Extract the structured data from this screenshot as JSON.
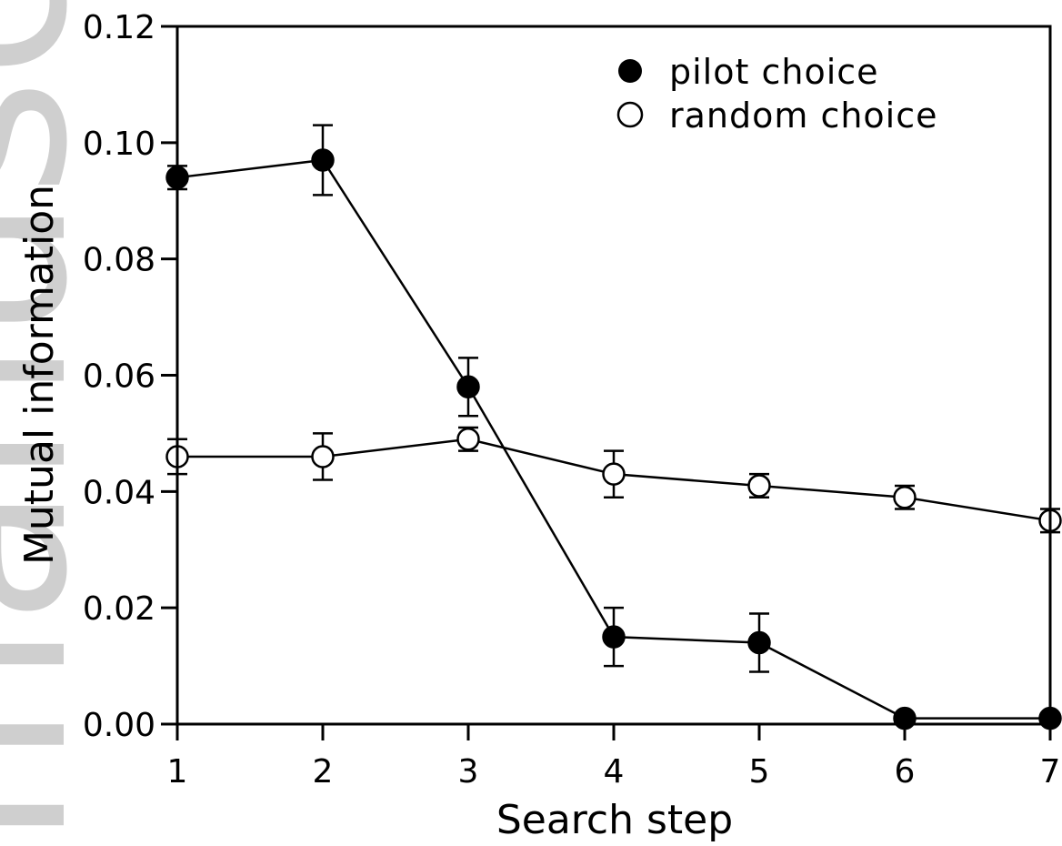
{
  "watermark": "manuscript",
  "chart_data": {
    "type": "line",
    "title": "",
    "xlabel": "Search step",
    "ylabel": "Mutual information",
    "x": [
      1,
      2,
      3,
      4,
      5,
      6,
      7
    ],
    "xlim": [
      1,
      7
    ],
    "ylim": [
      0,
      0.12
    ],
    "xticks": [
      "1",
      "2",
      "3",
      "4",
      "5",
      "6",
      "7"
    ],
    "yticks": [
      "0.00",
      "0.02",
      "0.04",
      "0.06",
      "0.08",
      "0.10",
      "0.12"
    ],
    "grid": false,
    "legend_position": "top-right",
    "series": [
      {
        "name": "pilot choice",
        "marker": "filled-circle",
        "color": "#000000",
        "values": [
          0.094,
          0.097,
          0.058,
          0.015,
          0.014,
          0.001,
          0.001
        ],
        "errors": [
          0.002,
          0.006,
          0.005,
          0.005,
          0.005,
          0.0005,
          0.0005
        ]
      },
      {
        "name": "random choice",
        "marker": "open-circle",
        "color": "#000000",
        "values": [
          0.046,
          0.046,
          0.049,
          0.043,
          0.041,
          0.039,
          0.035
        ],
        "errors": [
          0.003,
          0.004,
          0.002,
          0.004,
          0.002,
          0.002,
          0.002
        ]
      }
    ]
  }
}
